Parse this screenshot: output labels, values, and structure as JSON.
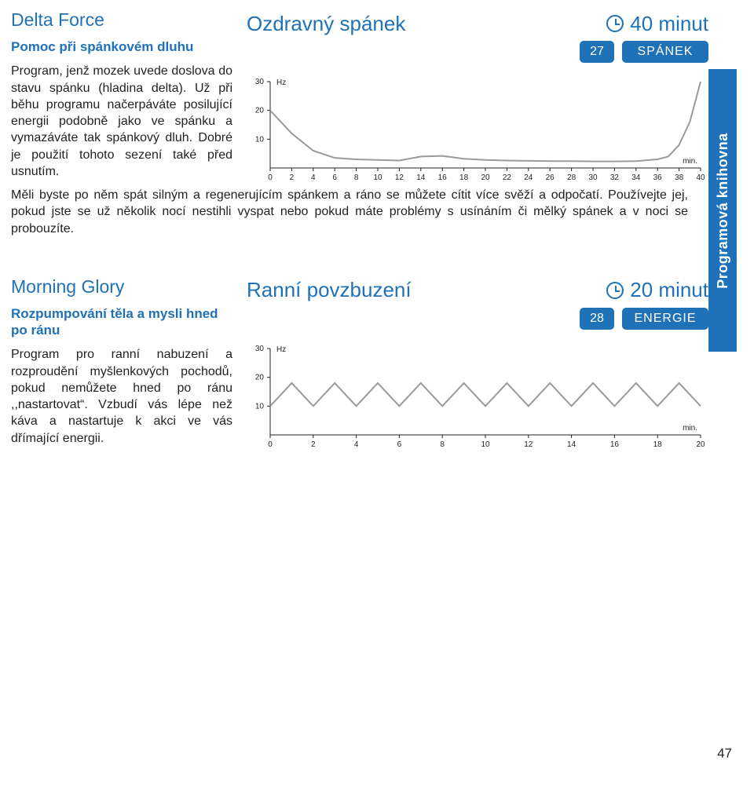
{
  "side_tab": "Programová knihovna",
  "page_number": "47",
  "entries": [
    {
      "name": "Delta Force",
      "subtitle": "Pomoc při spánkovém dluhu",
      "left_desc": "Program, jenž mozek uvede doslova do stavu spánku (hladina delta). Už při běhu programu načerpáváte posilující energii podobně jako ve spánku a vymazáváte tak spánkový dluh. Dobré je použití tohoto sezení také před usnutím.",
      "full_desc": "Měli byste po něm spát silným a regenerujícím spánkem a ráno se můžete cítit více svěží a odpočatí. Používejte jej, pokud jste se už několik nocí nestihli vyspat nebo pokud máte problémy s usínáním či mělký spánek a v noci se probouzíte.",
      "big_title": "Ozdravný spánek",
      "duration": "40 minut",
      "badge_num": "27",
      "badge_cat": "SPÁNEK",
      "chart": {
        "type": "line",
        "y_unit": "Hz",
        "x_unit": "min.",
        "xlim": [
          0,
          40
        ],
        "ylim": [
          0,
          30
        ],
        "xtick_step": 2,
        "ytick_step": 10,
        "line_color": "#999a9c",
        "axis_color": "#231f20",
        "tick_fontsize": 10,
        "label_fontsize": 10,
        "background": "#ffffff",
        "points": [
          [
            0,
            20
          ],
          [
            2,
            12
          ],
          [
            4,
            6
          ],
          [
            6,
            3.5
          ],
          [
            8,
            3
          ],
          [
            10,
            2.8
          ],
          [
            12,
            2.6
          ],
          [
            14,
            4
          ],
          [
            16,
            4.2
          ],
          [
            18,
            3.2
          ],
          [
            20,
            2.8
          ],
          [
            22,
            2.6
          ],
          [
            24,
            2.5
          ],
          [
            26,
            2.4
          ],
          [
            28,
            2.4
          ],
          [
            30,
            2.3
          ],
          [
            32,
            2.3
          ],
          [
            34,
            2.4
          ],
          [
            36,
            3
          ],
          [
            37,
            4
          ],
          [
            38,
            8
          ],
          [
            39,
            16
          ],
          [
            40,
            30
          ]
        ]
      }
    },
    {
      "name": "Morning Glory",
      "subtitle": "Rozpumpování těla a mysli hned po ránu",
      "left_desc": "Program pro ranní nabuzení a rozproudění myšlenkových pochodů, pokud nemůžete hned po ránu ,,nastartovat“. Vzbudí vás lépe než káva a nastartuje k akci ve vás dřímající energii.",
      "full_desc": "",
      "big_title": "Ranní povzbuzení",
      "duration": "20 minut",
      "badge_num": "28",
      "badge_cat": "ENERGIE",
      "chart": {
        "type": "line",
        "y_unit": "Hz",
        "x_unit": "min.",
        "xlim": [
          0,
          20
        ],
        "ylim": [
          0,
          30
        ],
        "xtick_step": 2,
        "ytick_step": 10,
        "line_color": "#999a9c",
        "axis_color": "#231f20",
        "tick_fontsize": 10,
        "label_fontsize": 10,
        "background": "#ffffff",
        "points": [
          [
            0,
            10
          ],
          [
            1,
            18
          ],
          [
            2,
            10
          ],
          [
            3,
            18
          ],
          [
            4,
            10
          ],
          [
            5,
            18
          ],
          [
            6,
            10
          ],
          [
            7,
            18
          ],
          [
            8,
            10
          ],
          [
            9,
            18
          ],
          [
            10,
            10
          ],
          [
            11,
            18
          ],
          [
            12,
            10
          ],
          [
            13,
            18
          ],
          [
            14,
            10
          ],
          [
            15,
            18
          ],
          [
            16,
            10
          ],
          [
            17,
            18
          ],
          [
            18,
            10
          ],
          [
            19,
            18
          ],
          [
            20,
            10
          ]
        ]
      }
    }
  ]
}
